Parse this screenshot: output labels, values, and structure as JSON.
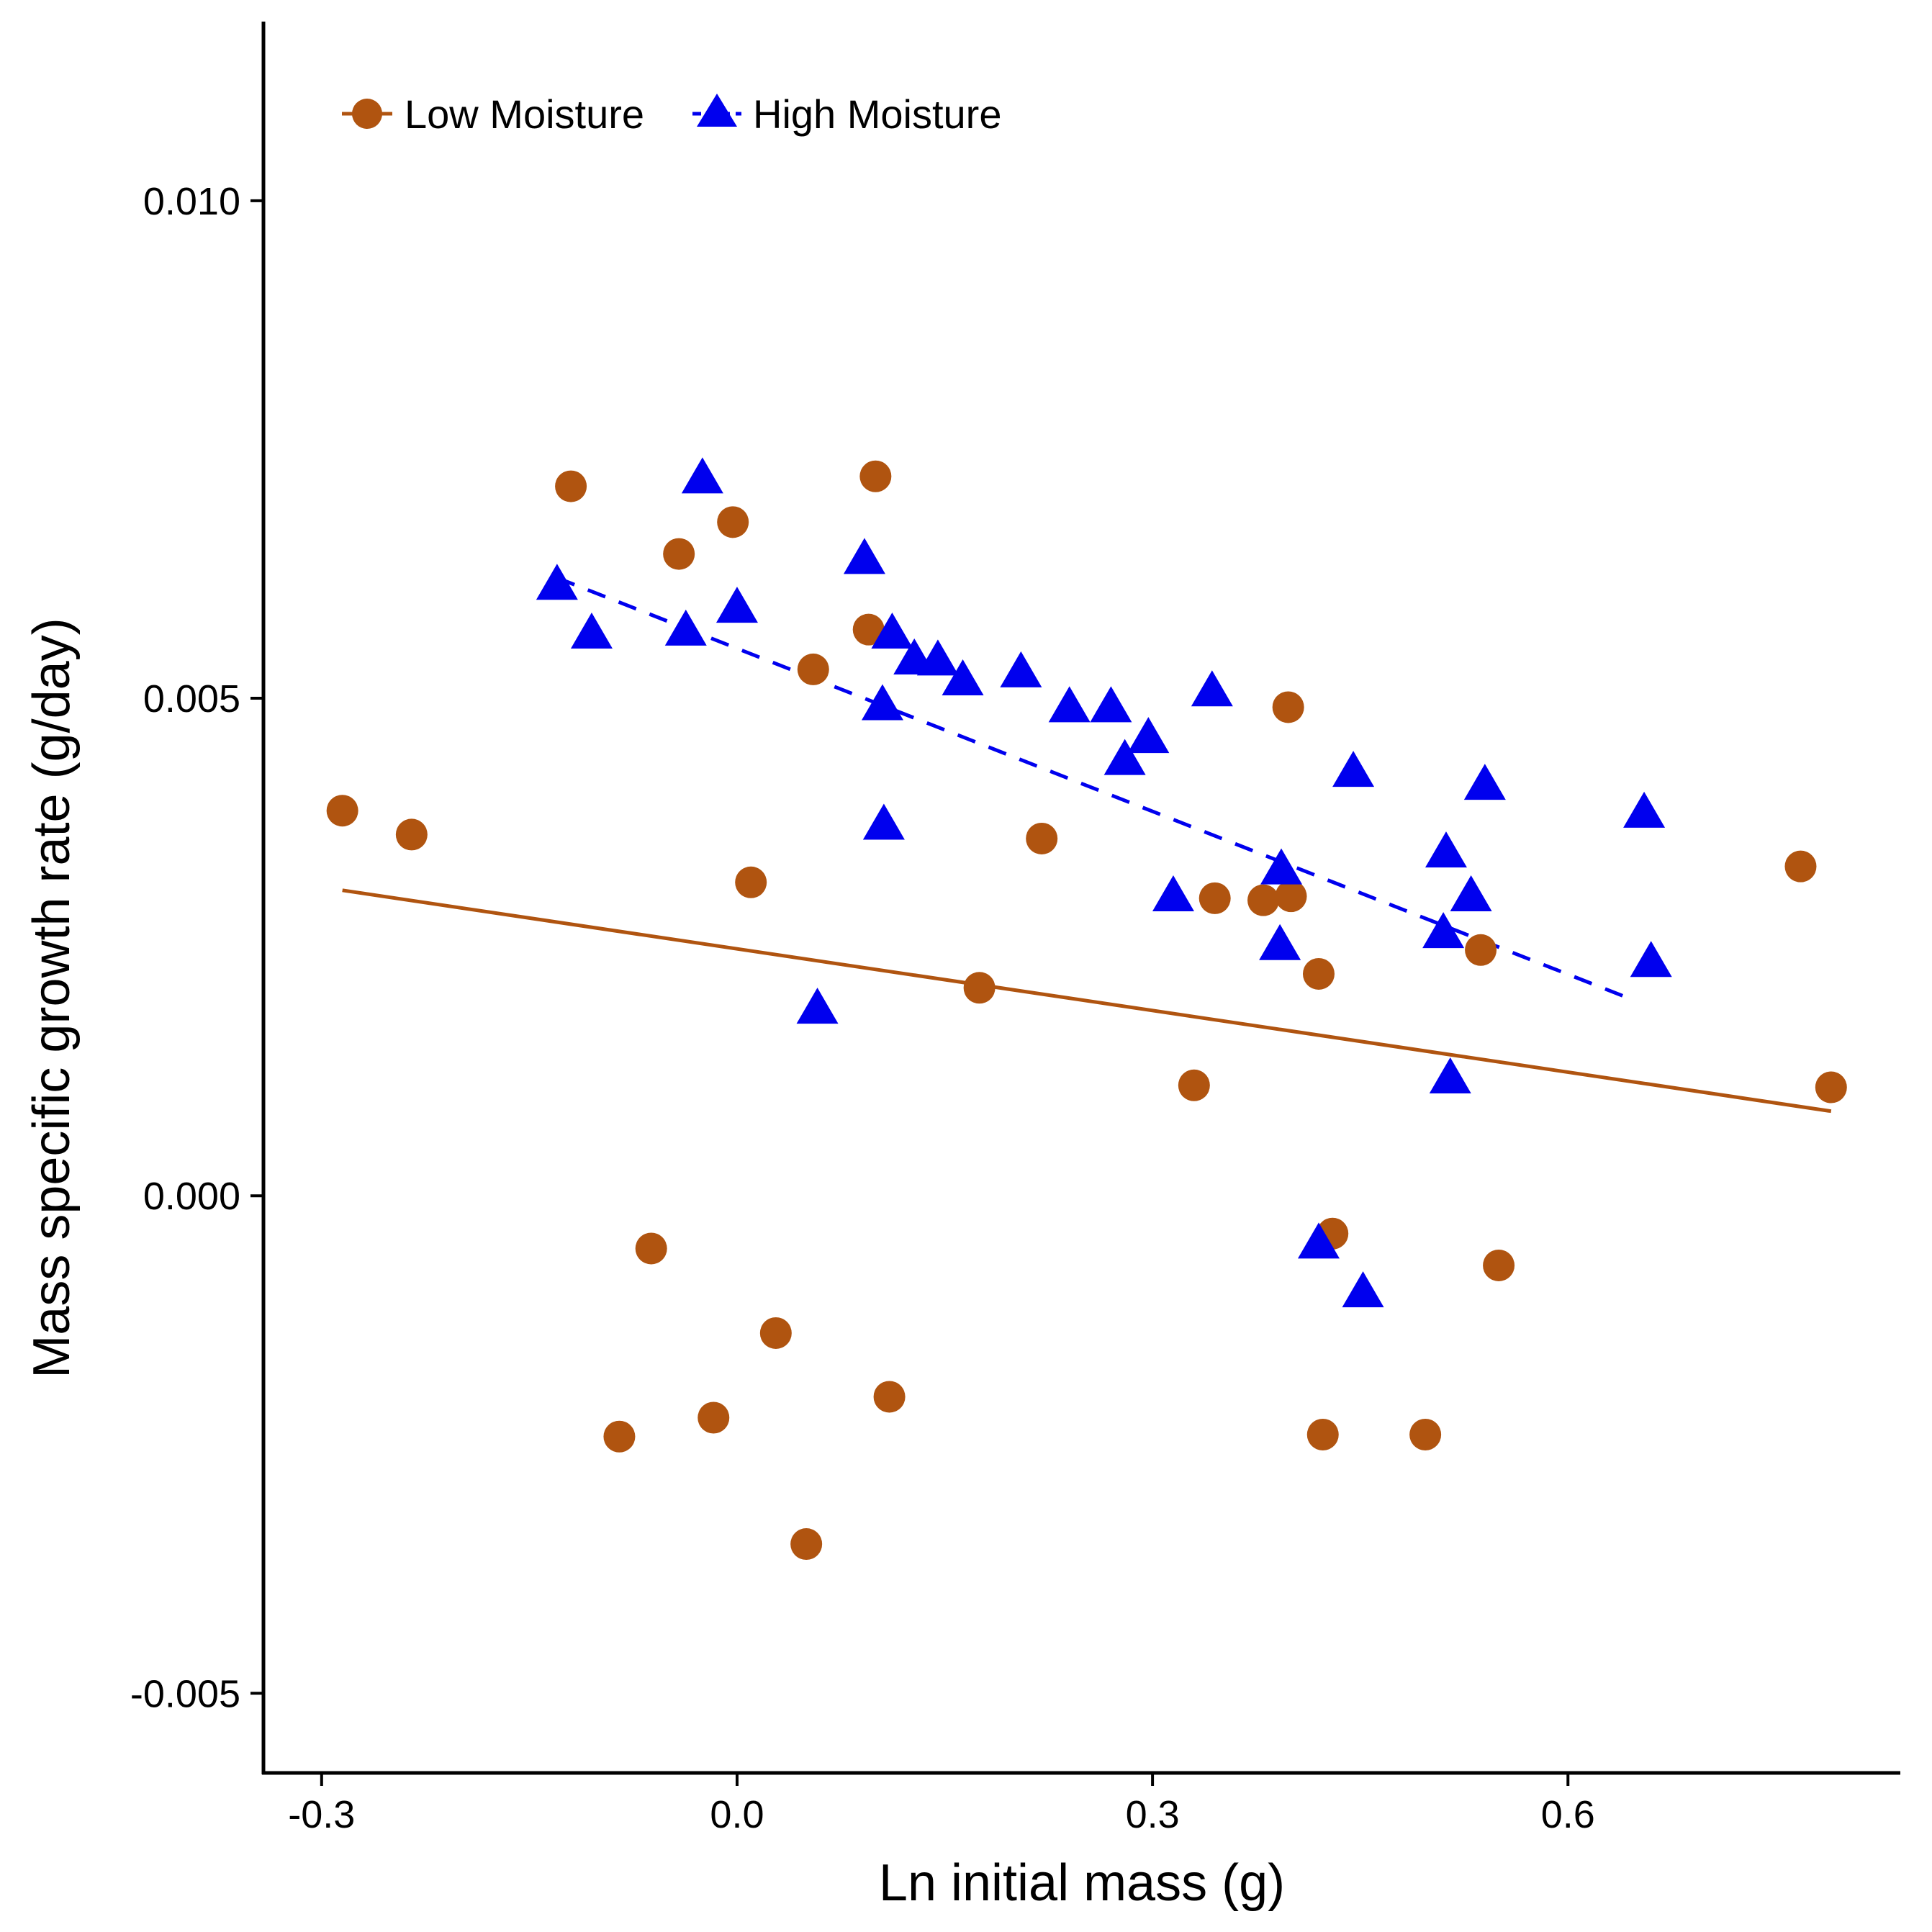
{
  "chart_data": {
    "type": "scatter",
    "title": "",
    "xlabel": "Ln initial mass (g)",
    "ylabel": "Mass specific growth rate (g/day)",
    "xlim": [
      -0.342,
      0.84
    ],
    "ylim": [
      -0.0058,
      0.0118
    ],
    "x_ticks": [
      -0.3,
      0.0,
      0.3,
      0.6
    ],
    "x_tick_labels": [
      "-0.3",
      "0.0",
      "0.3",
      "0.6"
    ],
    "y_ticks": [
      -0.005,
      0.0,
      0.005,
      0.01
    ],
    "y_tick_labels": [
      "-0.005",
      "0.000",
      "0.005",
      "0.010"
    ],
    "grid": false,
    "legend_position": "top-left",
    "series": [
      {
        "name": "Low Moisture",
        "marker": "circle",
        "color": "#b05410",
        "line_style": "solid",
        "fit": {
          "x": [
            -0.285,
            0.79
          ],
          "y": [
            0.00307,
            0.00085
          ]
        },
        "points": [
          {
            "x": -0.285,
            "y": 0.00387
          },
          {
            "x": -0.235,
            "y": 0.00363
          },
          {
            "x": -0.12,
            "y": 0.00713
          },
          {
            "x": -0.042,
            "y": 0.00645
          },
          {
            "x": -0.003,
            "y": 0.00677
          },
          {
            "x": 0.01,
            "y": 0.00315
          },
          {
            "x": 0.055,
            "y": 0.00529
          },
          {
            "x": 0.095,
            "y": 0.00569
          },
          {
            "x": 0.1,
            "y": 0.00723
          },
          {
            "x": 0.175,
            "y": 0.00209
          },
          {
            "x": 0.22,
            "y": 0.00359
          },
          {
            "x": 0.33,
            "y": 0.00111
          },
          {
            "x": 0.345,
            "y": 0.00299
          },
          {
            "x": 0.38,
            "y": 0.00297
          },
          {
            "x": 0.4,
            "y": 0.00301
          },
          {
            "x": 0.398,
            "y": 0.00491
          },
          {
            "x": 0.42,
            "y": 0.00223
          },
          {
            "x": 0.43,
            "y": -0.00038
          },
          {
            "x": 0.537,
            "y": 0.00247
          },
          {
            "x": 0.55,
            "y": -0.0007
          },
          {
            "x": 0.768,
            "y": 0.00331
          },
          {
            "x": 0.79,
            "y": 0.00109
          },
          {
            "x": -0.062,
            "y": -0.00053
          },
          {
            "x": -0.085,
            "y": -0.00242
          },
          {
            "x": -0.017,
            "y": -0.00223
          },
          {
            "x": 0.028,
            "y": -0.00138
          },
          {
            "x": 0.11,
            "y": -0.00202
          },
          {
            "x": 0.05,
            "y": -0.0035
          },
          {
            "x": 0.423,
            "y": -0.0024
          },
          {
            "x": 0.497,
            "y": -0.0024
          }
        ]
      },
      {
        "name": "High Moisture",
        "marker": "triangle",
        "color": "#0000ee",
        "line_style": "dashed",
        "fit": {
          "x": [
            -0.13,
            0.645
          ],
          "y": [
            0.00621,
            0.00198
          ]
        },
        "points": [
          {
            "x": -0.13,
            "y": 0.00617
          },
          {
            "x": -0.105,
            "y": 0.00568
          },
          {
            "x": -0.025,
            "y": 0.00724
          },
          {
            "x": -0.037,
            "y": 0.00571
          },
          {
            "x": 0.0,
            "y": 0.00594
          },
          {
            "x": 0.092,
            "y": 0.00643
          },
          {
            "x": 0.112,
            "y": 0.00568
          },
          {
            "x": 0.128,
            "y": 0.00542
          },
          {
            "x": 0.145,
            "y": 0.00541
          },
          {
            "x": 0.163,
            "y": 0.00521
          },
          {
            "x": 0.205,
            "y": 0.00529
          },
          {
            "x": 0.24,
            "y": 0.00494
          },
          {
            "x": 0.27,
            "y": 0.00494
          },
          {
            "x": 0.28,
            "y": 0.00441
          },
          {
            "x": 0.297,
            "y": 0.00463
          },
          {
            "x": 0.343,
            "y": 0.0051
          },
          {
            "x": 0.105,
            "y": 0.00496
          },
          {
            "x": 0.106,
            "y": 0.00376
          },
          {
            "x": 0.315,
            "y": 0.00304
          },
          {
            "x": 0.393,
            "y": 0.00331
          },
          {
            "x": 0.392,
            "y": 0.00255
          },
          {
            "x": 0.445,
            "y": 0.00429
          },
          {
            "x": 0.512,
            "y": 0.00348
          },
          {
            "x": 0.54,
            "y": 0.00416
          },
          {
            "x": 0.53,
            "y": 0.00304
          },
          {
            "x": 0.51,
            "y": 0.00267
          },
          {
            "x": 0.655,
            "y": 0.00388
          },
          {
            "x": 0.66,
            "y": 0.00238
          },
          {
            "x": 0.058,
            "y": 0.00191
          },
          {
            "x": 0.515,
            "y": 0.00121
          },
          {
            "x": 0.42,
            "y": -0.00045
          },
          {
            "x": 0.452,
            "y": -0.00094
          }
        ]
      }
    ]
  }
}
